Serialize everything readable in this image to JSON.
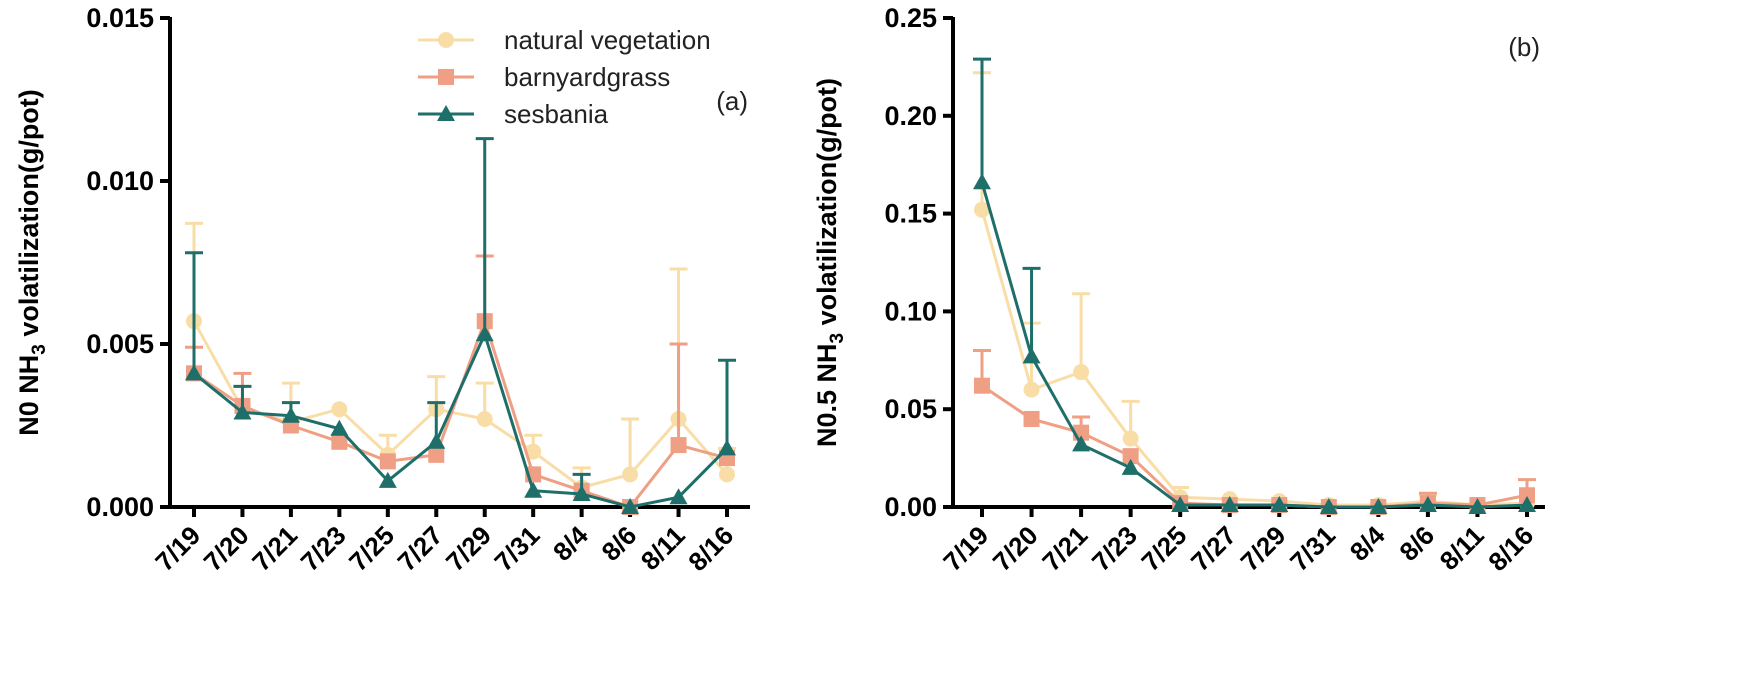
{
  "colors": {
    "natural_vegetation": "#F9DDA6",
    "barnyardgrass": "#EE9F84",
    "sesbania": "#1E6E6A",
    "axis": "#000000"
  },
  "chart_data": [
    {
      "type": "line",
      "panel_tag": "(a)",
      "ylabel_prefix": "N0 NH",
      "ylabel_sub": "3",
      "ylabel_suffix": " volatilization(g/pot)",
      "categories": [
        "7/19",
        "7/20",
        "7/21",
        "7/23",
        "7/25",
        "7/27",
        "7/29",
        "7/31",
        "8/4",
        "8/6",
        "8/11",
        "8/16"
      ],
      "ylim": [
        0,
        0.015
      ],
      "yticks": [
        "0.000",
        "0.005",
        "0.010",
        "0.015"
      ],
      "ytick_values": [
        0,
        0.005,
        0.01,
        0.015
      ],
      "legend": [
        "natural vegetation",
        "barnyardgrass",
        "sesbania"
      ],
      "series": [
        {
          "name": "natural vegetation",
          "marker": "circle",
          "values": [
            0.0057,
            0.003,
            0.0026,
            0.003,
            0.0016,
            0.003,
            0.0027,
            0.0017,
            0.0006,
            0.001,
            0.0027,
            0.001
          ],
          "err": [
            0.003,
            0.0007,
            0.0012,
            0.0,
            0.0006,
            0.001,
            0.0011,
            0.0005,
            0.0006,
            0.0017,
            0.0046,
            0.0008
          ]
        },
        {
          "name": "barnyardgrass",
          "marker": "square",
          "values": [
            0.0041,
            0.0031,
            0.0025,
            0.002,
            0.0014,
            0.0016,
            0.0057,
            0.001,
            0.0005,
            0.0,
            0.0019,
            0.0015
          ],
          "err": [
            0.0008,
            0.001,
            0.0,
            0.0,
            0.0,
            0.0,
            0.002,
            0.0,
            0.0,
            0.0,
            0.0031,
            0.0
          ]
        },
        {
          "name": "sesbania",
          "marker": "triangle",
          "values": [
            0.0041,
            0.0029,
            0.0028,
            0.0024,
            0.0008,
            0.002,
            0.0053,
            0.0005,
            0.0004,
            0.0,
            0.0003,
            0.0018
          ],
          "err": [
            0.0037,
            0.0008,
            0.0004,
            0.0,
            0.0,
            0.0012,
            0.006,
            0.0,
            0.0006,
            0.0,
            0.0,
            0.0027
          ]
        }
      ]
    },
    {
      "type": "line",
      "panel_tag": "(b)",
      "ylabel_prefix": "N0.5 NH",
      "ylabel_sub": "3",
      "ylabel_suffix": " volatilization(g/pot)",
      "categories": [
        "7/19",
        "7/20",
        "7/21",
        "7/23",
        "7/25",
        "7/27",
        "7/29",
        "7/31",
        "8/4",
        "8/6",
        "8/11",
        "8/16"
      ],
      "ylim": [
        0,
        0.25
      ],
      "yticks": [
        "0.00",
        "0.05",
        "0.10",
        "0.15",
        "0.20",
        "0.25"
      ],
      "ytick_values": [
        0,
        0.05,
        0.1,
        0.15,
        0.2,
        0.25
      ],
      "series": [
        {
          "name": "natural vegetation",
          "marker": "circle",
          "values": [
            0.152,
            0.06,
            0.069,
            0.035,
            0.005,
            0.004,
            0.003,
            0.001,
            0.001,
            0.003,
            0.001,
            0.002
          ],
          "err": [
            0.07,
            0.034,
            0.04,
            0.019,
            0.005,
            0.0,
            0.0,
            0.0,
            0.0,
            0.003,
            0.0,
            0.0
          ]
        },
        {
          "name": "barnyardgrass",
          "marker": "square",
          "values": [
            0.062,
            0.045,
            0.038,
            0.026,
            0.002,
            0.001,
            0.001,
            0.0,
            0.0,
            0.002,
            0.001,
            0.006
          ],
          "err": [
            0.018,
            0.0,
            0.008,
            0.0,
            0.0,
            0.0,
            0.0,
            0.0,
            0.0,
            0.005,
            0.0,
            0.008
          ]
        },
        {
          "name": "sesbania",
          "marker": "triangle",
          "values": [
            0.166,
            0.077,
            0.032,
            0.02,
            0.001,
            0.001,
            0.001,
            0.0,
            0.0,
            0.001,
            0.0,
            0.001
          ],
          "err": [
            0.063,
            0.045,
            0.0,
            0.0,
            0.0,
            0.0,
            0.0,
            0.0,
            0.0,
            0.0,
            0.0,
            0.0
          ]
        }
      ]
    }
  ]
}
